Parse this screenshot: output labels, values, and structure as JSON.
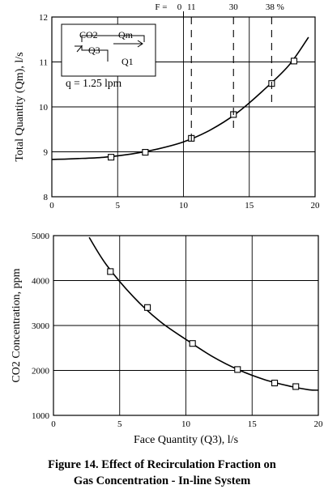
{
  "chart_data": [
    {
      "type": "line",
      "ylabel": "Total Quantity (Qm), l/s",
      "xlim": [
        0,
        20
      ],
      "ylim": [
        8,
        12
      ],
      "xticks": [
        "0",
        "5",
        "10",
        "15",
        "20"
      ],
      "yticks": [
        "8",
        "9",
        "10",
        "11",
        "12"
      ],
      "grid": true,
      "series": [
        {
          "marker": "square",
          "x": [
            4.5,
            7.1,
            10.6,
            13.8,
            16.7,
            18.4
          ],
          "y": [
            8.88,
            8.99,
            9.3,
            9.83,
            10.52,
            11.02
          ]
        }
      ],
      "fit_curve": {
        "x": [
          0,
          2,
          4,
          6,
          8,
          10,
          12,
          14,
          16,
          18,
          19.5
        ],
        "y": [
          8.83,
          8.85,
          8.88,
          8.95,
          9.06,
          9.22,
          9.48,
          9.85,
          10.35,
          10.92,
          11.55
        ]
      },
      "recirculation_fraction": {
        "prefix": "F =",
        "labels": [
          "0",
          "11",
          "30",
          "38 %"
        ],
        "x": [
          10,
          10.6,
          13.8,
          16.7
        ]
      },
      "inset": {
        "labels": [
          "CO2",
          "Qm",
          "Q3",
          "Q1"
        ],
        "note": "q = 1.25 lpm"
      }
    },
    {
      "type": "line",
      "xlabel": "Face Quantity (Q3), l/s",
      "ylabel": "CO2 Concentration, ppm",
      "xlim": [
        0,
        20
      ],
      "ylim": [
        1000,
        5000
      ],
      "xticks": [
        "0",
        "5",
        "10",
        "15",
        "20"
      ],
      "yticks": [
        "1000",
        "2000",
        "3000",
        "4000",
        "5000"
      ],
      "grid": true,
      "series": [
        {
          "marker": "square",
          "x": [
            4.3,
            7.1,
            10.5,
            13.9,
            16.7,
            18.3
          ],
          "y": [
            4200,
            3400,
            2600,
            2020,
            1720,
            1640
          ]
        }
      ],
      "fit_curve": {
        "x": [
          2.7,
          4,
          6,
          8,
          10,
          12,
          14,
          16,
          18,
          19.3,
          20
        ],
        "y": [
          4960,
          4350,
          3650,
          3100,
          2690,
          2310,
          2010,
          1790,
          1640,
          1570,
          1560
        ]
      }
    }
  ],
  "caption": {
    "line1": "Figure 14. Effect of Recirculation Fraction on",
    "line2": "Gas Concentration - In-line System"
  }
}
